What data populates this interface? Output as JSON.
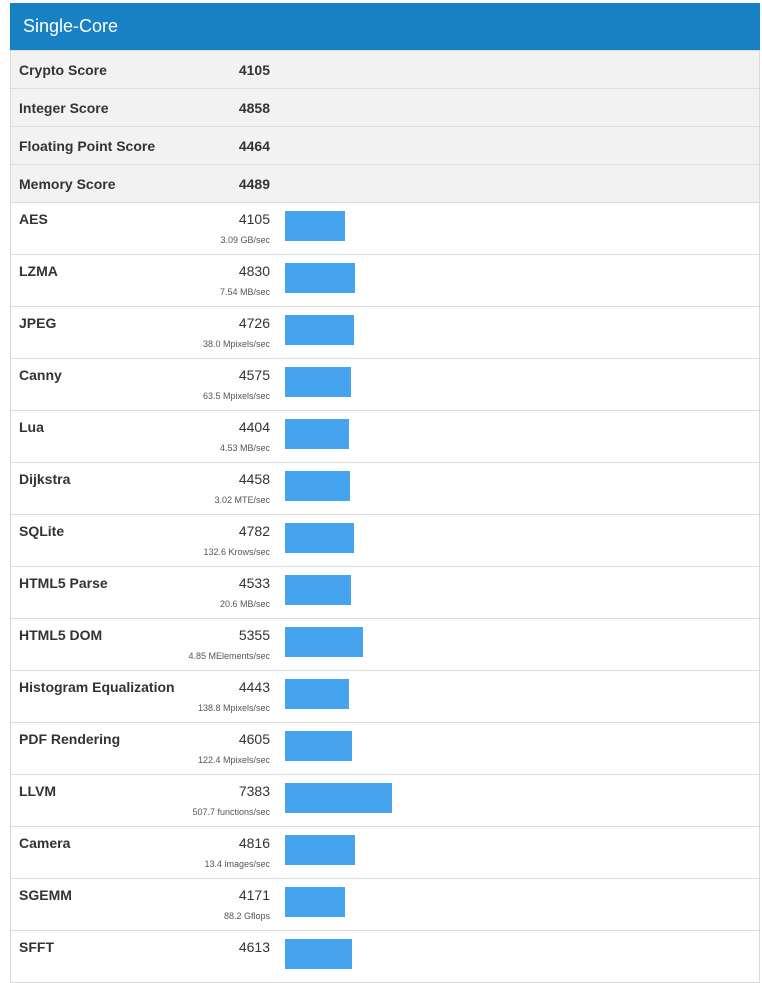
{
  "section": {
    "title": "Single-Core"
  },
  "summary": [
    {
      "name": "Crypto Score",
      "score": "4105"
    },
    {
      "name": "Integer Score",
      "score": "4858"
    },
    {
      "name": "Floating Point Score",
      "score": "4464"
    },
    {
      "name": "Memory Score",
      "score": "4489"
    }
  ],
  "bar_color": "#45a3ee",
  "bar_scale_max": 10000,
  "benchmarks": [
    {
      "name": "AES",
      "score": "4105",
      "rate": "3.09 GB/sec"
    },
    {
      "name": "LZMA",
      "score": "4830",
      "rate": "7.54 MB/sec"
    },
    {
      "name": "JPEG",
      "score": "4726",
      "rate": "38.0 Mpixels/sec"
    },
    {
      "name": "Canny",
      "score": "4575",
      "rate": "63.5 Mpixels/sec"
    },
    {
      "name": "Lua",
      "score": "4404",
      "rate": "4.53 MB/sec"
    },
    {
      "name": "Dijkstra",
      "score": "4458",
      "rate": "3.02 MTE/sec"
    },
    {
      "name": "SQLite",
      "score": "4782",
      "rate": "132.6 Krows/sec"
    },
    {
      "name": "HTML5 Parse",
      "score": "4533",
      "rate": "20.6 MB/sec"
    },
    {
      "name": "HTML5 DOM",
      "score": "5355",
      "rate": "4.85 MElements/sec"
    },
    {
      "name": "Histogram Equalization",
      "score": "4443",
      "rate": "138.8 Mpixels/sec"
    },
    {
      "name": "PDF Rendering",
      "score": "4605",
      "rate": "122.4 Mpixels/sec"
    },
    {
      "name": "LLVM",
      "score": "7383",
      "rate": "507.7 functions/sec"
    },
    {
      "name": "Camera",
      "score": "4816",
      "rate": "13.4 images/sec"
    },
    {
      "name": "SGEMM",
      "score": "4171",
      "rate": "88.2 Gflops"
    },
    {
      "name": "SFFT",
      "score": "4613",
      "rate": ""
    }
  ]
}
